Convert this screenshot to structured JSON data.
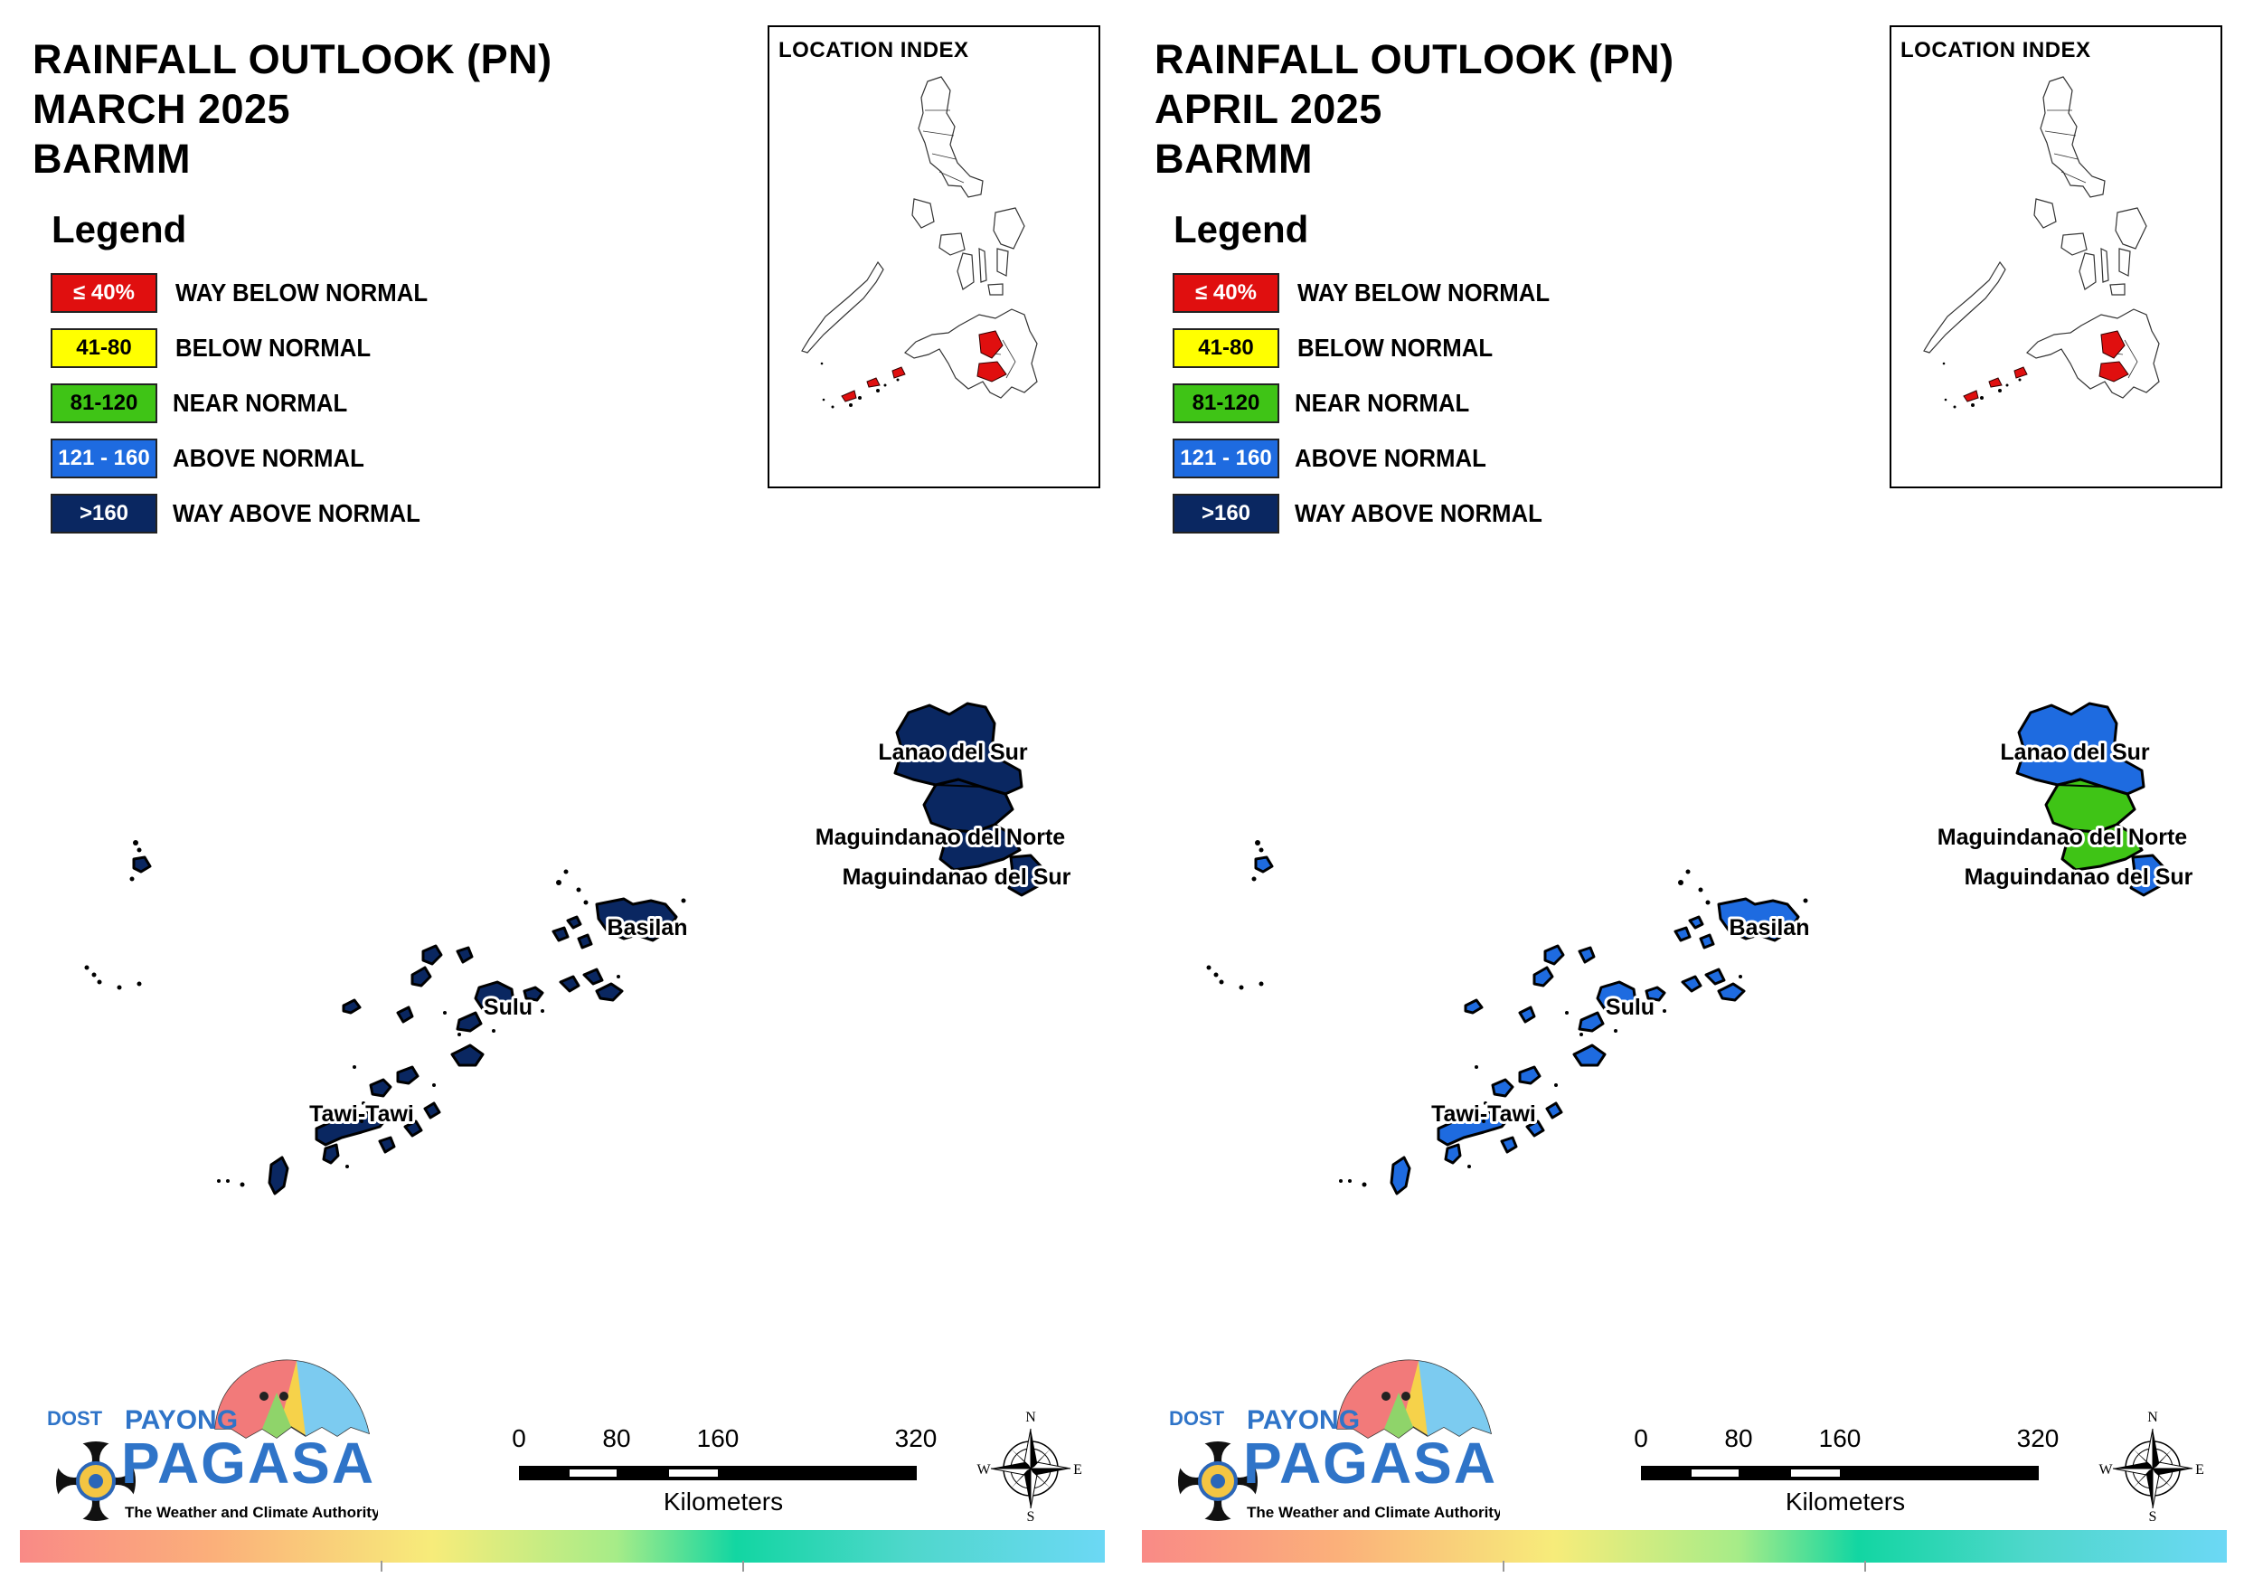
{
  "panels": [
    {
      "title_lines": [
        "RAINFALL OUTLOOK (PN)",
        "MARCH 2025",
        "BARMM"
      ],
      "fills": {
        "lanao_del_sur": "#0a2761",
        "maguindanao_del_norte": "#0a2761",
        "maguindanao_del_sur": "#0a2761",
        "maguindanao_del_sur_east": "#0a2761",
        "basilan": "#0a2761",
        "sulu": "#0a2761",
        "tawi_tawi": "#0a2761"
      }
    },
    {
      "title_lines": [
        "RAINFALL OUTLOOK (PN)",
        "APRIL 2025",
        "BARMM"
      ],
      "fills": {
        "lanao_del_sur": "#1e6be0",
        "maguindanao_del_norte": "#3fc416",
        "maguindanao_del_sur": "#3fc416",
        "maguindanao_del_sur_east": "#1e6be0",
        "basilan": "#1e6be0",
        "sulu": "#1e6be0",
        "tawi_tawi": "#1e6be0"
      }
    }
  ],
  "legend": {
    "title": "Legend",
    "items": [
      {
        "range": "≤ 40%",
        "label": "WAY BELOW NORMAL",
        "color": "#e00f0f",
        "text_color": "#ffffff"
      },
      {
        "range": "41-80",
        "label": "BELOW NORMAL",
        "color": "#ffff00",
        "text_color": "#000000"
      },
      {
        "range": "81-120",
        "label": "NEAR NORMAL",
        "color": "#3fc416",
        "text_color": "#000000"
      },
      {
        "range": "121 - 160",
        "label": "ABOVE NORMAL",
        "color": "#1e6be0",
        "text_color": "#ffffff"
      },
      {
        "range": ">160",
        "label": "WAY ABOVE NORMAL",
        "color": "#0a2761",
        "text_color": "#ffffff"
      }
    ]
  },
  "location_index": {
    "title": "LOCATION INDEX",
    "highlight_color": "#e00f0f"
  },
  "map_labels": {
    "lanao_del_sur": "Lanao del Sur",
    "maguindanao_del_norte": "Maguindanao del Norte",
    "maguindanao_del_sur": "Maguindanao del Sur",
    "basilan": "Basilan",
    "sulu": "Sulu",
    "tawi_tawi": "Tawi-Tawi"
  },
  "scale_bar": {
    "ticks": [
      "0",
      "80",
      "160",
      "320"
    ],
    "unit": "Kilometers"
  },
  "compass": {
    "n": "N",
    "s": "S",
    "e": "E",
    "w": "W"
  },
  "logo": {
    "dost": "DOST",
    "payong": "PAYONG",
    "pagasa": "PAGASA",
    "tagline": "The Weather and Climate Authority"
  }
}
